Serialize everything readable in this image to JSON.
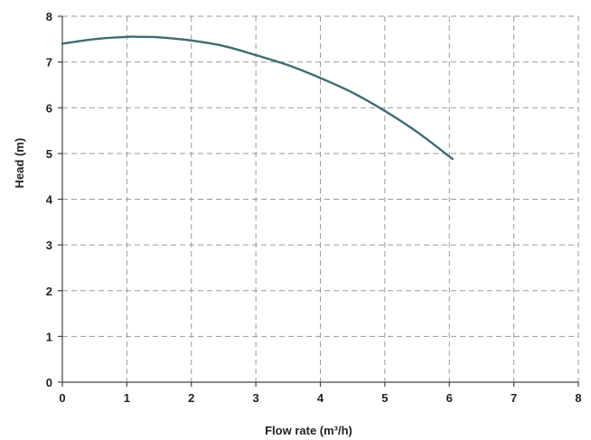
{
  "chart_data": {
    "type": "line",
    "title": "",
    "xlabel": "Flow rate (m³/h)",
    "ylabel": "Head (m)",
    "xlim": [
      0,
      8
    ],
    "ylim": [
      0,
      8
    ],
    "x_ticks": [
      0,
      1,
      2,
      3,
      4,
      5,
      6,
      7,
      8
    ],
    "y_ticks": [
      0,
      1,
      2,
      3,
      4,
      5,
      6,
      7,
      8
    ],
    "grid": true,
    "legend": "none",
    "series": [
      {
        "color": "#3d6b72",
        "x": [
          0,
          0.5,
          1.0,
          1.2,
          1.5,
          2.0,
          2.5,
          3.0,
          3.5,
          4.0,
          4.5,
          5.0,
          5.5,
          6.05
        ],
        "y": [
          7.4,
          7.5,
          7.55,
          7.55,
          7.54,
          7.47,
          7.35,
          7.15,
          6.93,
          6.65,
          6.33,
          5.93,
          5.47,
          4.88
        ]
      }
    ]
  }
}
